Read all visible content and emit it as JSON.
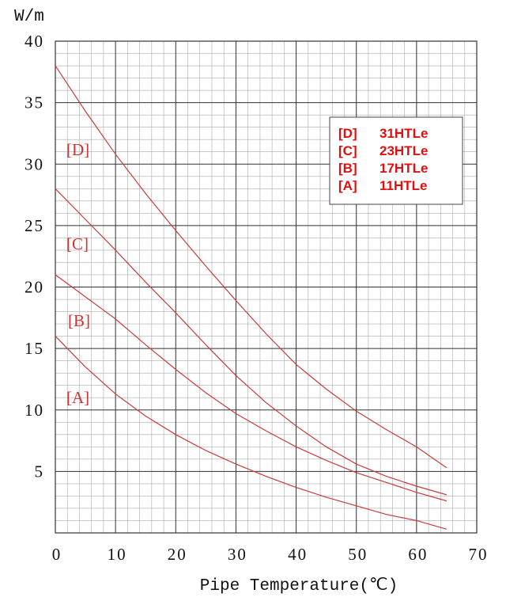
{
  "chart_data": {
    "type": "line",
    "ylabel": "W/m",
    "xlabel": "Pipe Temperature(℃)",
    "x": [
      0,
      5,
      10,
      15,
      20,
      25,
      30,
      35,
      40,
      45,
      50,
      55,
      60,
      65
    ],
    "series": [
      {
        "label": "[D]",
        "name": "31HTLe",
        "color": "#c83c3c",
        "values": [
          38,
          34.3,
          30.8,
          27.6,
          24.6,
          21.7,
          18.9,
          16.2,
          13.7,
          11.7,
          9.9,
          8.4,
          7.0,
          5.3
        ]
      },
      {
        "label": "[C]",
        "name": "23HTLe",
        "color": "#c83c3c",
        "values": [
          28,
          25.5,
          23,
          20.4,
          17.9,
          15.3,
          12.8,
          10.6,
          8.7,
          7.0,
          5.6,
          4.6,
          3.8,
          3.1
        ]
      },
      {
        "label": "[B]",
        "name": "17HTLe",
        "color": "#c83c3c",
        "values": [
          21,
          19.2,
          17.4,
          15.3,
          13.3,
          11.4,
          9.7,
          8.3,
          7.0,
          5.9,
          4.9,
          4.1,
          3.3,
          2.6
        ]
      },
      {
        "label": "[A]",
        "name": "11HTLe",
        "color": "#c83c3c",
        "values": [
          16,
          13.5,
          11.3,
          9.5,
          8.0,
          6.7,
          5.6,
          4.6,
          3.7,
          2.9,
          2.2,
          1.5,
          1.0,
          0.3
        ]
      }
    ],
    "xlim": [
      0,
      70
    ],
    "xticks": [
      0,
      10,
      20,
      30,
      40,
      50,
      60,
      70
    ],
    "ylim": [
      0,
      40
    ],
    "yticks": [
      5,
      10,
      15,
      20,
      25,
      30,
      35,
      40
    ],
    "grid": true,
    "legend": "upper right"
  }
}
